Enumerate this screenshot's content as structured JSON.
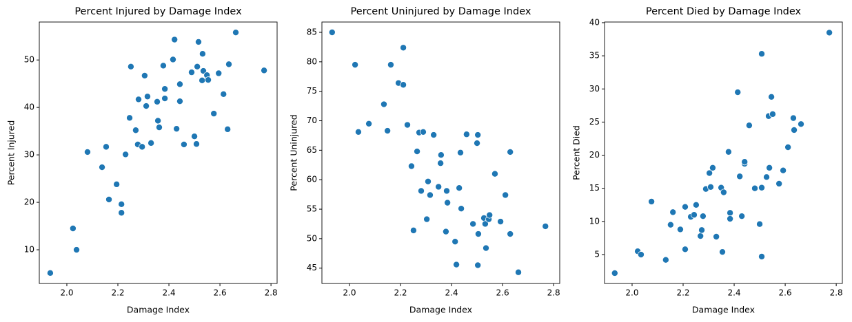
{
  "chart_data": [
    {
      "type": "scatter",
      "title": "Percent Injured by Damage Index",
      "x_label": "Damage Index",
      "y_label": "Percent Injured",
      "color": "#1f77b4",
      "xlim": [
        1.892,
        2.824
      ],
      "ylim": [
        2.9,
        58
      ],
      "xticks": [
        {
          "value": 2,
          "label": "2.0"
        },
        2.2,
        2.4,
        2.6,
        2.8
      ],
      "yticks": [
        10,
        20,
        30,
        40,
        50
      ],
      "x": [
        1.935,
        2.024,
        2.038,
        2.081,
        2.138,
        2.154,
        2.165,
        2.195,
        2.214,
        2.214,
        2.23,
        2.246,
        2.251,
        2.27,
        2.281,
        2.278,
        2.295,
        2.305,
        2.311,
        2.316,
        2.33,
        2.354,
        2.357,
        2.362,
        2.378,
        2.384,
        2.384,
        2.416,
        2.422,
        2.43,
        2.443,
        2.443,
        2.459,
        2.489,
        2.5,
        2.511,
        2.508,
        2.516,
        2.53,
        2.532,
        2.535,
        2.549,
        2.554,
        2.576,
        2.595,
        2.614,
        2.63,
        2.635,
        2.662,
        2.773
      ],
      "values": [
        5.1,
        14.5,
        10.0,
        30.6,
        27.4,
        31.7,
        20.6,
        23.8,
        19.6,
        17.8,
        30.1,
        37.8,
        48.6,
        35.2,
        41.7,
        32.2,
        31.7,
        46.7,
        40.3,
        42.3,
        32.5,
        41.2,
        37.2,
        35.8,
        48.8,
        43.9,
        41.9,
        50.1,
        54.3,
        35.5,
        44.9,
        41.3,
        32.2,
        47.4,
        33.9,
        48.6,
        32.3,
        53.8,
        45.7,
        51.3,
        47.7,
        46.8,
        45.8,
        38.7,
        47.2,
        42.8,
        35.4,
        49.1,
        55.8,
        47.8
      ]
    },
    {
      "type": "scatter",
      "title": "Percent Uninjured by Damage Index",
      "x_label": "Damage Index",
      "y_label": "Percent Uninjured",
      "color": "#1f77b4",
      "xlim": [
        1.892,
        2.824
      ],
      "ylim": [
        42.4,
        86.75
      ],
      "xticks": [
        {
          "value": 2,
          "label": "2.0"
        },
        2.2,
        2.4,
        2.6,
        2.8
      ],
      "yticks": [
        45,
        50,
        55,
        60,
        65,
        70,
        75,
        80,
        85
      ],
      "x": [
        1.932,
        2.022,
        2.035,
        2.076,
        2.135,
        2.149,
        2.162,
        2.192,
        2.211,
        2.211,
        2.227,
        2.243,
        2.251,
        2.265,
        2.273,
        2.281,
        2.289,
        2.303,
        2.308,
        2.316,
        2.33,
        2.349,
        2.357,
        2.359,
        2.381,
        2.384,
        2.378,
        2.414,
        2.419,
        2.43,
        2.438,
        2.435,
        2.459,
        2.484,
        2.5,
        2.503,
        2.505,
        2.527,
        2.532,
        2.535,
        2.546,
        2.549,
        2.57,
        2.592,
        2.611,
        2.63,
        2.63,
        2.768,
        2.503,
        2.662
      ],
      "values": [
        85.0,
        79.5,
        68.1,
        69.5,
        72.8,
        68.3,
        79.5,
        76.4,
        82.4,
        76.1,
        69.3,
        62.3,
        51.4,
        64.8,
        68.0,
        58.1,
        68.1,
        53.3,
        59.7,
        57.4,
        67.6,
        58.8,
        62.8,
        64.2,
        58.1,
        56.1,
        51.2,
        49.5,
        45.6,
        58.6,
        55.1,
        64.6,
        67.7,
        52.5,
        66.2,
        67.6,
        50.8,
        53.5,
        52.5,
        48.4,
        53.3,
        54.0,
        61.0,
        52.9,
        57.4,
        50.8,
        64.7,
        52.1,
        45.5,
        44.3
      ]
    },
    {
      "type": "scatter",
      "title": "Percent Died by Damage Index",
      "x_label": "Damage Index",
      "y_label": "Percent Died",
      "color": "#1f77b4",
      "xlim": [
        1.892,
        2.824
      ],
      "ylim": [
        0.64,
        40.1
      ],
      "xticks": [
        {
          "value": 2,
          "label": "2.0"
        },
        2.2,
        2.4,
        2.6,
        2.8
      ],
      "yticks": [
        5,
        10,
        15,
        20,
        25,
        30,
        35,
        40
      ],
      "x": [
        1.932,
        2.022,
        2.035,
        2.076,
        2.132,
        2.151,
        2.16,
        2.189,
        2.208,
        2.208,
        2.23,
        2.243,
        2.251,
        2.268,
        2.273,
        2.278,
        2.289,
        2.303,
        2.308,
        2.316,
        2.33,
        2.349,
        2.354,
        2.359,
        2.378,
        2.384,
        2.384,
        2.414,
        2.422,
        2.43,
        2.441,
        2.441,
        2.459,
        2.481,
        2.5,
        2.508,
        2.508,
        2.508,
        2.527,
        2.535,
        2.538,
        2.546,
        2.551,
        2.576,
        2.592,
        2.611,
        2.632,
        2.635,
        2.662,
        2.773
      ],
      "values": [
        2.2,
        5.5,
        5.0,
        13.0,
        4.2,
        9.5,
        11.4,
        8.8,
        12.2,
        5.8,
        10.7,
        11.0,
        12.5,
        7.8,
        8.7,
        10.8,
        14.9,
        17.3,
        15.2,
        18.1,
        7.7,
        15.1,
        5.4,
        14.4,
        20.5,
        11.3,
        10.4,
        29.5,
        16.8,
        10.8,
        18.7,
        19.0,
        24.5,
        15.0,
        9.6,
        4.7,
        35.3,
        15.1,
        16.7,
        25.9,
        18.1,
        28.8,
        26.2,
        15.7,
        17.7,
        21.2,
        25.6,
        23.8,
        24.7,
        38.5
      ]
    }
  ]
}
